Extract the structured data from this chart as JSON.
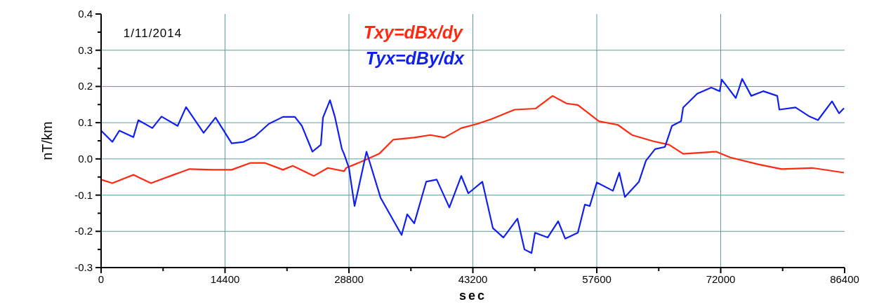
{
  "chart_data": {
    "type": "line",
    "xlabel": "sec",
    "ylabel": "nT/km",
    "annotations": [
      "1/11/2014"
    ],
    "xlim": [
      0,
      86400
    ],
    "xticks": [
      0,
      {
        "value": 7200,
        "label": null
      },
      14400,
      {
        "value": 21600,
        "label": null
      },
      28800,
      {
        "value": 36000,
        "label": null
      },
      43200,
      {
        "value": 50400,
        "label": null
      },
      57600,
      {
        "value": 64800,
        "label": null
      },
      72000,
      {
        "value": 79200,
        "label": null
      },
      86400
    ],
    "ylim": [
      -0.3,
      0.4
    ],
    "yticks": [
      -0.3,
      {
        "value": -0.25,
        "label": null
      },
      -0.2,
      {
        "value": -0.15,
        "label": null
      },
      -0.1,
      {
        "value": -0.05,
        "label": null
      },
      {
        "value": 0,
        "label": "0.0"
      },
      {
        "value": 0.05,
        "label": null
      },
      0.1,
      {
        "value": 0.15,
        "label": null
      },
      0.2,
      {
        "value": 0.25,
        "label": null
      },
      0.3,
      {
        "value": 0.35,
        "label": null
      },
      0.4
    ],
    "grid": true,
    "legend": "top",
    "marker": "none",
    "line_style": "solid",
    "series": [
      {
        "name": "Txy=dBx/dy",
        "color": "#ff2a10",
        "x": [
          0,
          1305,
          3753,
          5793,
          8404,
          10280,
          12973,
          15176,
          17379,
          19010,
          21133,
          22274,
          24722,
          26354,
          28230,
          28475,
          30107,
          32310,
          33942,
          36389,
          38266,
          39898,
          41856,
          43733,
          45364,
          48057,
          50505,
          52463,
          54095,
          55400,
          57848,
          60051,
          61683,
          64130,
          66007,
          67638,
          71473,
          73105,
          76369,
          79062,
          82652,
          86324
        ],
        "values": [
          -0.057,
          -0.067,
          -0.044,
          -0.067,
          -0.044,
          -0.028,
          -0.03,
          -0.03,
          -0.011,
          -0.011,
          -0.03,
          -0.019,
          -0.047,
          -0.025,
          -0.034,
          -0.025,
          -0.009,
          0.014,
          0.053,
          0.059,
          0.066,
          0.059,
          0.085,
          0.097,
          0.11,
          0.136,
          0.139,
          0.174,
          0.153,
          0.149,
          0.104,
          0.094,
          0.066,
          0.049,
          0.039,
          0.014,
          0.02,
          0.004,
          -0.015,
          -0.028,
          -0.025,
          -0.038
        ]
      },
      {
        "name": "Tyx=dBy/dx",
        "color": "#1020f0",
        "x": [
          0,
          1305,
          2121,
          3753,
          4324,
          5956,
          7017,
          8893,
          9872,
          11912,
          13299,
          15176,
          16563,
          17869,
          19501,
          21133,
          22520,
          23336,
          24559,
          25538,
          25783,
          26599,
          27170,
          27986,
          28230,
          28802,
          29455,
          30842,
          32473,
          34921,
          35573,
          36389,
          37776,
          39000,
          40469,
          41856,
          42672,
          44304,
          45527,
          46751,
          48383,
          49199,
          50015,
          50423,
          51891,
          53115,
          53931,
          55400,
          56216,
          56787,
          57603,
          59480,
          60214,
          60867,
          62499,
          63314,
          64375,
          65517,
          66333,
          67393,
          67638,
          69270,
          70902,
          71881,
          72126,
          73758,
          74492,
          75553,
          76940,
          78572,
          78817,
          80694,
          82326,
          83305,
          84937,
          85753,
          86324
        ],
        "values": [
          0.078,
          0.047,
          0.078,
          0.06,
          0.107,
          0.085,
          0.117,
          0.091,
          0.143,
          0.072,
          0.114,
          0.043,
          0.047,
          0.062,
          0.097,
          0.116,
          0.116,
          0.091,
          0.02,
          0.039,
          0.114,
          0.162,
          0.116,
          0.027,
          0.014,
          -0.025,
          -0.13,
          0.02,
          -0.107,
          -0.21,
          -0.153,
          -0.178,
          -0.063,
          -0.057,
          -0.134,
          -0.047,
          -0.095,
          -0.063,
          -0.191,
          -0.217,
          -0.165,
          -0.25,
          -0.26,
          -0.204,
          -0.217,
          -0.172,
          -0.22,
          -0.204,
          -0.126,
          -0.13,
          -0.065,
          -0.088,
          -0.038,
          -0.105,
          -0.063,
          -0.005,
          0.027,
          0.033,
          0.091,
          0.104,
          0.142,
          0.18,
          0.197,
          0.187,
          0.219,
          0.168,
          0.221,
          0.174,
          0.187,
          0.174,
          0.136,
          0.142,
          0.117,
          0.107,
          0.159,
          0.126,
          0.14
        ]
      }
    ]
  }
}
